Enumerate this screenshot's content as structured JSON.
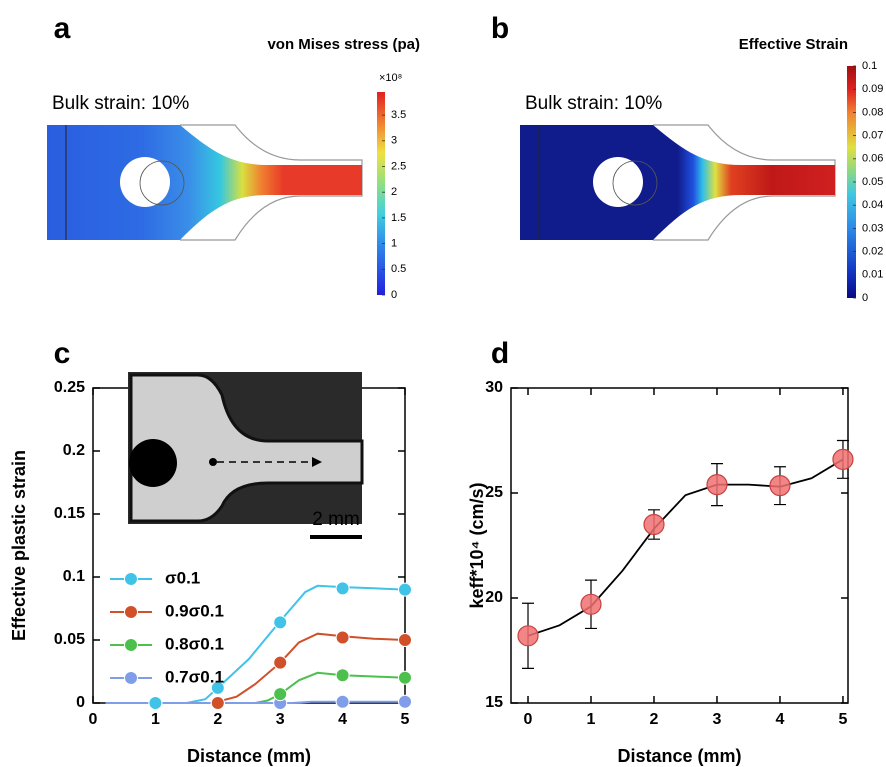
{
  "chart_data": [
    {
      "type": "contour",
      "panel": "a",
      "title": "von Mises stress (pa)",
      "annotation": "Bulk strain: 10%",
      "colorbar_multiplier": "×10⁸",
      "clim": [
        0,
        3.95
      ],
      "cticks": [
        0,
        0.5,
        1,
        1.5,
        2,
        2.5,
        3,
        3.5
      ]
    },
    {
      "type": "contour",
      "panel": "b",
      "title": "Effective Strain",
      "annotation": "Bulk strain: 10%",
      "clim": [
        0,
        0.1
      ],
      "cticks": [
        0,
        0.01,
        0.02,
        0.03,
        0.04,
        0.05,
        0.06,
        0.07,
        0.08,
        0.09,
        0.1
      ]
    },
    {
      "type": "line",
      "panel": "c",
      "xlabel": "Distance (mm)",
      "ylabel": "Effective plastic strain",
      "xlim": [
        0,
        5
      ],
      "xticks": [
        0,
        1,
        2,
        3,
        4,
        5
      ],
      "ylim": [
        0,
        0.25
      ],
      "yticks": [
        0,
        0.05,
        0.1,
        0.15,
        0.2,
        0.25
      ],
      "legend": "lower left",
      "inset_scale": "2 mm",
      "series": [
        {
          "name": "σ0.1",
          "color": "#41c3e8",
          "x": [
            0.2,
            1.5,
            1.8,
            2,
            2.5,
            3,
            3.4,
            3.6,
            4,
            4.5,
            5
          ],
          "values": [
            0,
            0,
            0.003,
            0.012,
            0.035,
            0.065,
            0.088,
            0.093,
            0.092,
            0.091,
            0.09
          ],
          "markers": {
            "x": [
              1,
              2,
              3,
              4,
              5
            ],
            "values": [
              0,
              0.012,
              0.064,
              0.091,
              0.09
            ]
          }
        },
        {
          "name": "0.9σ0.1",
          "color": "#d0502a",
          "x": [
            0.2,
            1.9,
            2,
            2.3,
            2.6,
            3,
            3.3,
            3.6,
            4,
            4.5,
            5
          ],
          "values": [
            0,
            0,
            0.001,
            0.005,
            0.015,
            0.032,
            0.048,
            0.055,
            0.053,
            0.051,
            0.05
          ],
          "markers": {
            "x": [
              1,
              2,
              3,
              4,
              5
            ],
            "values": [
              0,
              0,
              0.032,
              0.052,
              0.05
            ]
          }
        },
        {
          "name": "0.8σ0.1",
          "color": "#4cc04c",
          "x": [
            0.2,
            2.6,
            2.8,
            3,
            3.3,
            3.6,
            4,
            4.5,
            5
          ],
          "values": [
            0,
            0,
            0.002,
            0.007,
            0.018,
            0.024,
            0.022,
            0.021,
            0.02
          ],
          "markers": {
            "x": [
              1,
              2,
              3,
              4,
              5
            ],
            "values": [
              0,
              0,
              0.007,
              0.022,
              0.02
            ]
          }
        },
        {
          "name": "0.7σ0.1",
          "color": "#7f9de8",
          "x": [
            0.2,
            3.2,
            3.5,
            4,
            5
          ],
          "values": [
            0,
            0,
            0.001,
            0.001,
            0.001
          ],
          "markers": {
            "x": [
              1,
              2,
              3,
              4,
              5
            ],
            "values": [
              0,
              0,
              0,
              0.001,
              0.001
            ]
          }
        }
      ]
    },
    {
      "type": "scatter",
      "panel": "d",
      "xlabel": "Distance (mm)",
      "ylabel": "keff*10⁴ (cm/s)",
      "xlim": [
        -0.27,
        5.08
      ],
      "xticks": [
        0,
        1,
        2,
        3,
        4,
        5
      ],
      "ylim": [
        15,
        30
      ],
      "yticks": [
        15,
        20,
        25,
        30
      ],
      "color": "#f07070",
      "x": [
        0,
        1,
        2,
        3,
        4,
        5
      ],
      "values": [
        18.2,
        19.7,
        23.5,
        25.4,
        25.35,
        26.6
      ],
      "errors": [
        1.55,
        1.15,
        0.7,
        1.0,
        0.9,
        0.9
      ],
      "fit": {
        "x": [
          0,
          0.5,
          1,
          1.5,
          2,
          2.5,
          3,
          3.5,
          4,
          4.5,
          5
        ],
        "values": [
          18.2,
          18.7,
          19.6,
          21.3,
          23.3,
          24.9,
          25.4,
          25.4,
          25.3,
          25.7,
          26.6
        ]
      }
    }
  ]
}
